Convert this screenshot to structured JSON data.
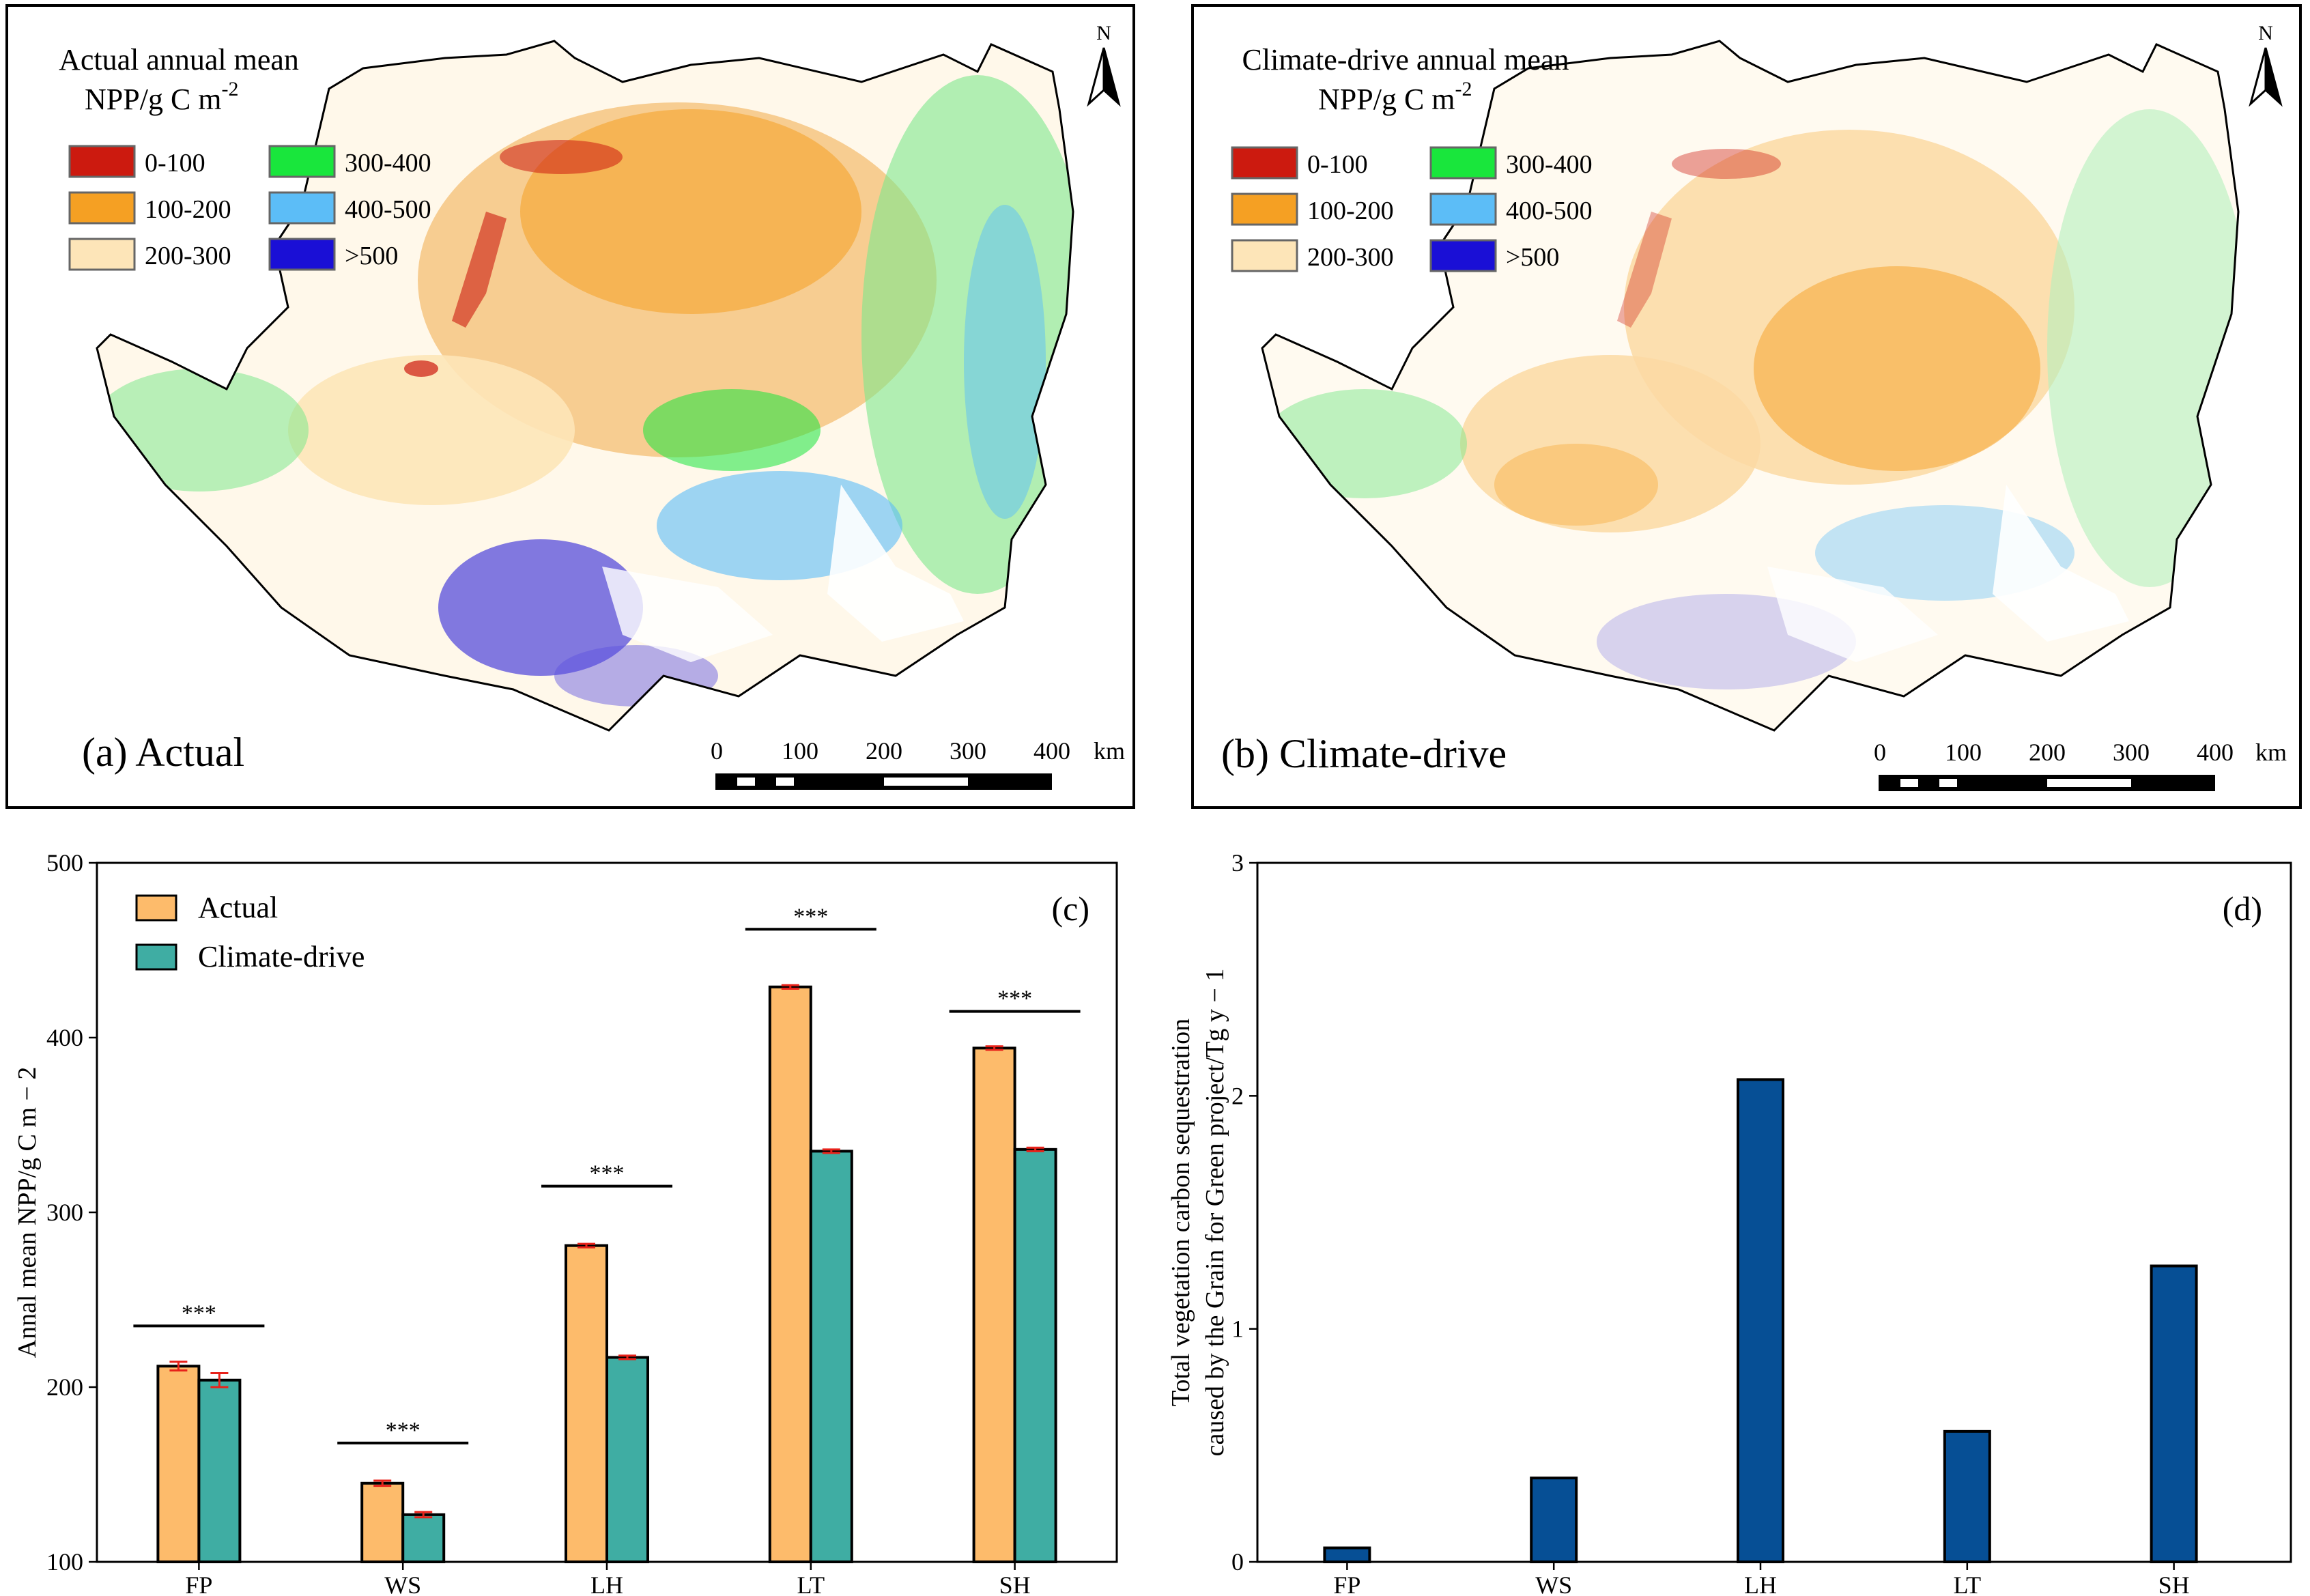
{
  "figure": {
    "panel_a": {
      "legend_title_line1": "Actual annual mean",
      "legend_title_line2": "NPP/g C m",
      "legend_title_sup": "-2",
      "caption": "(a) Actual",
      "north": "N"
    },
    "panel_b": {
      "legend_title_line1": "Climate-drive annual mean",
      "legend_title_line2": "NPP/g C m",
      "legend_title_sup": "-2",
      "caption": "(b) Climate-drive",
      "north": "N"
    },
    "map_legend": [
      {
        "label": "0-100",
        "color": "#cc1a0f"
      },
      {
        "label": "100-200",
        "color": "#f5a023"
      },
      {
        "label": "200-300",
        "color": "#fde5b8"
      },
      {
        "label": "300-400",
        "color": "#19e63c"
      },
      {
        "label": "400-500",
        "color": "#5cbdf7"
      },
      {
        "label": ">500",
        "color": "#1a0fd6"
      }
    ],
    "scale_bar": {
      "ticks": [
        "0",
        "100",
        "200",
        "300",
        "400"
      ],
      "unit": "km"
    },
    "map_fill_colors": {
      "outline": "#000000",
      "orange": "#f5a023",
      "light": "#fde5b8",
      "green": "#19e63c",
      "blue": "#5cbdf7",
      "navy": "#1a0fd6",
      "red": "#cc1a0f"
    }
  },
  "chart_data": [
    {
      "type": "bar",
      "panel_label": "(c)",
      "categories": [
        "FP",
        "WS",
        "LH",
        "LT",
        "SH"
      ],
      "series": [
        {
          "name": "Actual",
          "color": "#fdbb6b",
          "values": [
            212,
            145,
            281,
            429,
            394
          ],
          "errors": [
            2.5,
            1.5,
            1.0,
            1.0,
            1.0
          ]
        },
        {
          "name": "Climate-drive",
          "color": "#3fada3",
          "values": [
            204,
            127,
            217,
            335,
            336
          ],
          "errors": [
            4.0,
            1.5,
            1.0,
            1.0,
            1.0
          ]
        }
      ],
      "significance": [
        "***",
        "***",
        "***",
        "***",
        "***"
      ],
      "significance_heights": [
        235,
        168,
        315,
        462,
        415
      ],
      "ylabel": "Annal mean NPP/g C m − 2",
      "ylim": [
        100,
        500
      ],
      "yticks": [
        "100",
        "200",
        "300",
        "400",
        "500"
      ],
      "error_color": "#e8221a",
      "legend_position": "top-left"
    },
    {
      "type": "bar",
      "panel_label": "(d)",
      "categories": [
        "FP",
        "WS",
        "LH",
        "LT",
        "SH"
      ],
      "series": [
        {
          "name": "Total vegetation carbon sequestration",
          "color": "#064f95",
          "values": [
            0.06,
            0.36,
            2.07,
            0.56,
            1.27
          ]
        }
      ],
      "ylabel_line1": "Total vegetation carbon sequestration",
      "ylabel_line2": "caused by the Grain for Green project/Tg y − 1",
      "ylim": [
        0,
        3
      ],
      "yticks": [
        "0",
        "1",
        "2",
        "3"
      ]
    }
  ]
}
